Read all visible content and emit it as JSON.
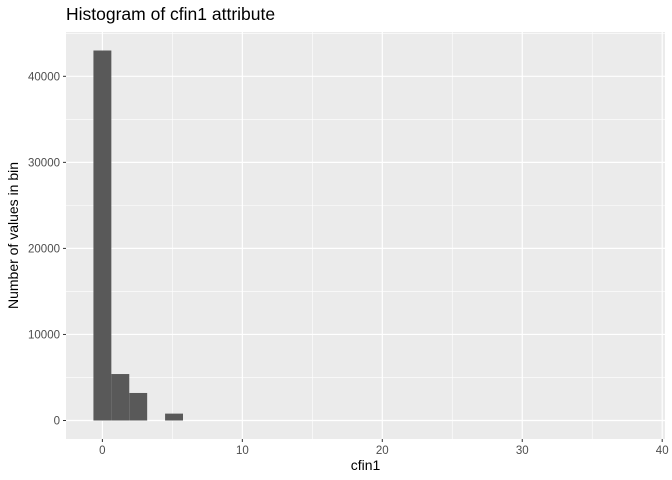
{
  "chart_data": {
    "type": "bar",
    "title": "Histogram of cfin1 attribute",
    "xlabel": "cfin1",
    "ylabel": "Number of values in bin",
    "xlim": [
      -2.6,
      40.2
    ],
    "ylim": [
      -2150,
      45150
    ],
    "x_ticks": [
      0,
      10,
      20,
      30,
      40
    ],
    "x_tick_labels": [
      "0",
      "10",
      "20",
      "30",
      "40"
    ],
    "y_ticks": [
      0,
      10000,
      20000,
      30000,
      40000
    ],
    "y_tick_labels": [
      "0",
      "10000",
      "20000",
      "30000",
      "40000"
    ],
    "grid": true,
    "legend": "none",
    "bar_color": "#595959",
    "panel_color": "#ebebeb",
    "grid_color": "#ffffff",
    "bins": [
      {
        "x0": -0.64,
        "x1": 0.64,
        "count": 43000
      },
      {
        "x0": 0.64,
        "x1": 1.92,
        "count": 5400
      },
      {
        "x0": 1.92,
        "x1": 3.2,
        "count": 3200
      },
      {
        "x0": 3.2,
        "x1": 4.48,
        "count": 0
      },
      {
        "x0": 4.48,
        "x1": 5.76,
        "count": 800
      }
    ]
  }
}
